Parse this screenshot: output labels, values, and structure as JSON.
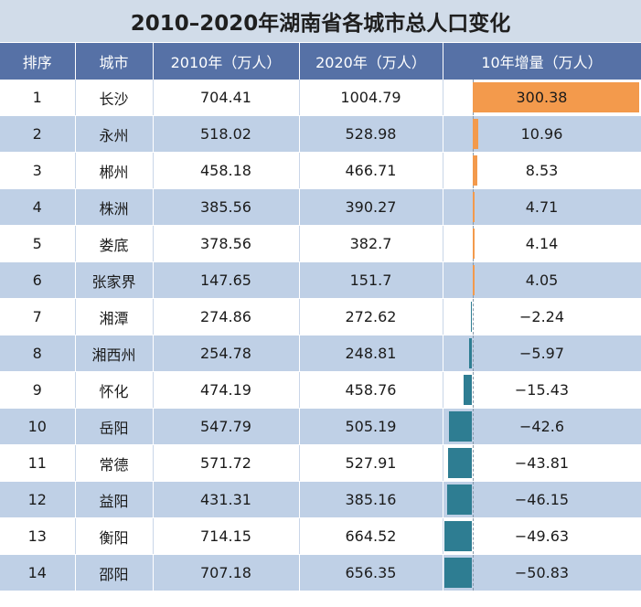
{
  "title": "2010–2020年湖南省各城市总人口变化",
  "headers": [
    "排序",
    "城市",
    "2010年（万人）",
    "2020年（万人）",
    "10年增量（万人）"
  ],
  "colors": {
    "positive_bar": "#f39a4c",
    "negative_bar": "#2e7d92",
    "header_bg": "#5671a6",
    "band_bg": "#bfd0e6"
  },
  "chart_data": {
    "type": "table",
    "columns": [
      "排序",
      "城市",
      "2010年（万人）",
      "2020年（万人）",
      "10年增量（万人）"
    ],
    "rows": [
      {
        "rank": "1",
        "city": "长沙",
        "y2010": "704.41",
        "y2020": "1004.79",
        "change": "300.38"
      },
      {
        "rank": "2",
        "city": "永州",
        "y2010": "518.02",
        "y2020": "528.98",
        "change": "10.96"
      },
      {
        "rank": "3",
        "city": "郴州",
        "y2010": "458.18",
        "y2020": "466.71",
        "change": "8.53"
      },
      {
        "rank": "4",
        "city": "株洲",
        "y2010": "385.56",
        "y2020": "390.27",
        "change": "4.71"
      },
      {
        "rank": "5",
        "city": "娄底",
        "y2010": "378.56",
        "y2020": "382.7",
        "change": "4.14"
      },
      {
        "rank": "6",
        "city": "张家界",
        "y2010": "147.65",
        "y2020": "151.7",
        "change": "4.05"
      },
      {
        "rank": "7",
        "city": "湘潭",
        "y2010": "274.86",
        "y2020": "272.62",
        "change": "−2.24"
      },
      {
        "rank": "8",
        "city": "湘西州",
        "y2010": "254.78",
        "y2020": "248.81",
        "change": "−5.97"
      },
      {
        "rank": "9",
        "city": "怀化",
        "y2010": "474.19",
        "y2020": "458.76",
        "change": "−15.43"
      },
      {
        "rank": "10",
        "city": "岳阳",
        "y2010": "547.79",
        "y2020": "505.19",
        "change": "−42.6"
      },
      {
        "rank": "11",
        "city": "常德",
        "y2010": "571.72",
        "y2020": "527.91",
        "change": "−43.81"
      },
      {
        "rank": "12",
        "city": "益阳",
        "y2010": "431.31",
        "y2020": "385.16",
        "change": "−46.15"
      },
      {
        "rank": "13",
        "city": "衡阳",
        "y2010": "714.15",
        "y2020": "664.52",
        "change": "−49.63"
      },
      {
        "rank": "14",
        "city": "邵阳",
        "y2010": "707.18",
        "y2020": "656.35",
        "change": "−50.83"
      }
    ],
    "bar_column": "10年增量（万人）"
  }
}
